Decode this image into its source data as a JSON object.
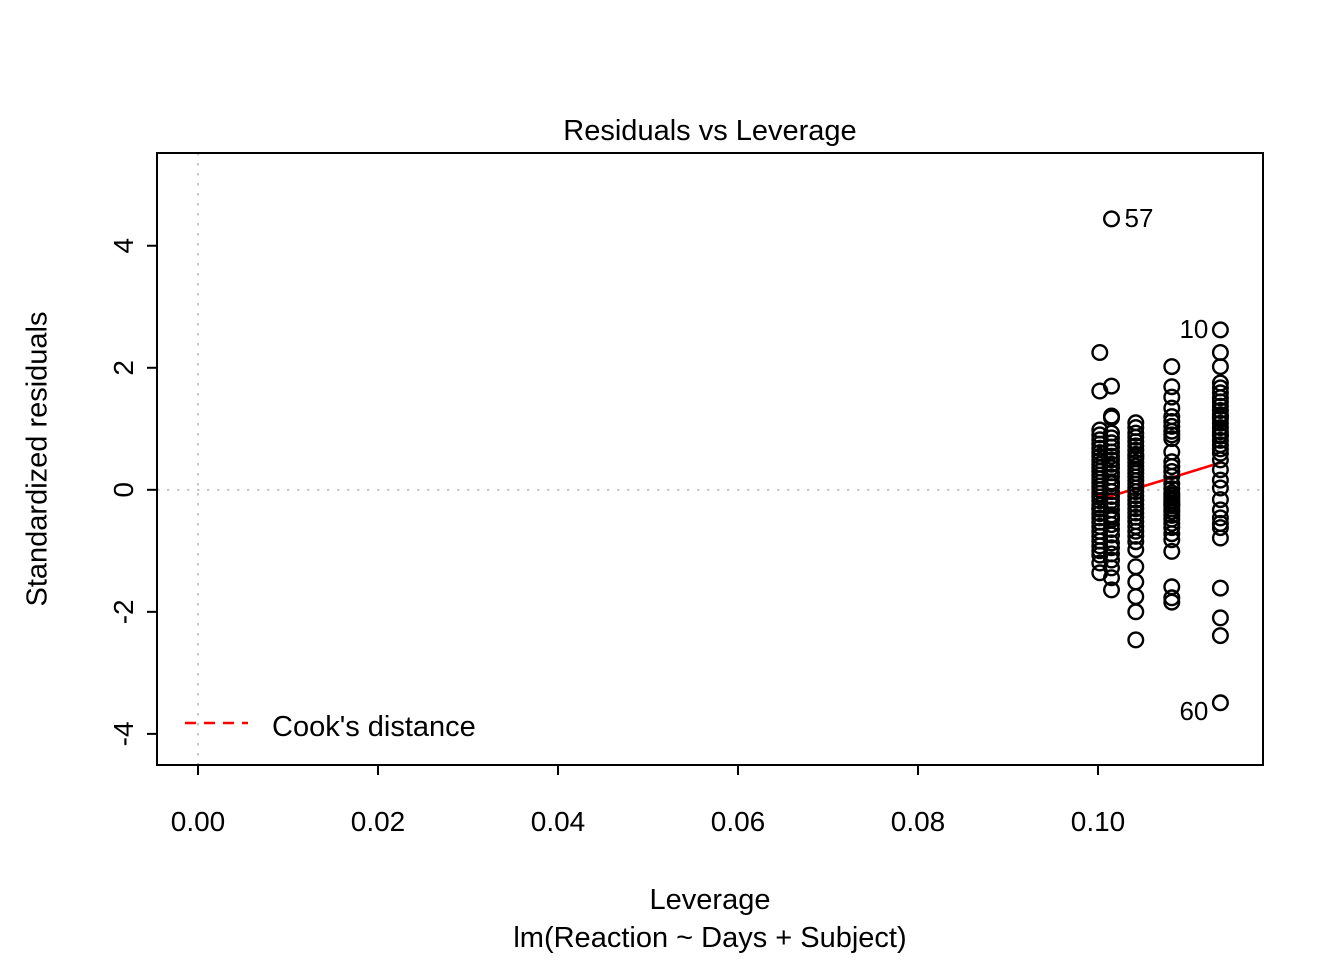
{
  "chart_data": {
    "type": "scatter",
    "title": "Residuals vs Leverage",
    "xlabel": "Leverage",
    "xlabel_sub": "lm(Reaction ~ Days + Subject)",
    "ylabel": "Standardized residuals",
    "x_ticks": {
      "values": [
        0.0,
        0.02,
        0.04,
        0.06,
        0.08,
        0.1
      ],
      "labels": [
        "0.00",
        "0.02",
        "0.04",
        "0.06",
        "0.08",
        "0.10"
      ]
    },
    "y_ticks": {
      "values": [
        -4,
        -2,
        0,
        2,
        4
      ],
      "labels": [
        "-4",
        "-2",
        "0",
        "2",
        "4"
      ]
    },
    "xlim": [
      -0.004556,
      0.118333
    ],
    "ylim": [
      -4.51,
      5.52
    ],
    "grid": "off",
    "reference_lines": {
      "vertical_x": 0.0,
      "horizontal_y": 0.0,
      "style": "dotted",
      "color": "#c7c7c7"
    },
    "marker": {
      "shape": "open-circle",
      "color": "#000000",
      "radius_px": 7.3
    },
    "series": [
      {
        "name": "leverage-0.1002",
        "leverage": 0.1002,
        "residuals": [
          2.25,
          1.62,
          0.98,
          0.9,
          0.82,
          0.75,
          0.68,
          0.61,
          0.55,
          0.48,
          0.42,
          0.36,
          0.3,
          0.24,
          0.18,
          0.12,
          0.06,
          0.0,
          -0.06,
          -0.12,
          -0.18,
          -0.25,
          -0.32,
          -0.39,
          -0.46,
          -0.53,
          -0.6,
          -0.68,
          -0.76,
          -0.84,
          -0.92,
          -1.0,
          -1.07,
          -1.2,
          -1.36,
          -0.3
        ]
      },
      {
        "name": "leverage-0.1015",
        "leverage": 0.1015,
        "residuals": [
          4.44,
          1.7,
          1.21,
          1.18,
          0.93,
          0.85,
          0.77,
          0.7,
          0.62,
          0.55,
          0.49,
          0.42,
          0.36,
          0.28,
          0.21,
          0.13,
          0.05,
          -0.03,
          -0.11,
          -0.18,
          -0.25,
          -0.33,
          -0.41,
          -0.49,
          -0.57,
          -0.65,
          -0.74,
          -0.87,
          -0.95,
          -1.05,
          -1.15,
          -1.28,
          -1.44,
          -1.64,
          0.1,
          -0.45
        ]
      },
      {
        "name": "leverage-0.1042",
        "leverage": 0.1042,
        "residuals": [
          1.1,
          1.02,
          0.93,
          0.86,
          0.79,
          0.72,
          0.65,
          0.58,
          0.51,
          0.45,
          0.39,
          0.33,
          0.27,
          0.21,
          0.15,
          0.09,
          0.03,
          -0.03,
          -0.1,
          -0.17,
          -0.24,
          -0.31,
          -0.38,
          -0.45,
          -0.52,
          -0.6,
          -0.68,
          -0.76,
          -0.85,
          -0.98,
          -1.26,
          -1.51,
          -1.75,
          -2.0,
          -2.46,
          0.55
        ]
      },
      {
        "name": "leverage-0.1082",
        "leverage": 0.1082,
        "residuals": [
          2.02,
          1.69,
          1.52,
          1.34,
          1.2,
          1.12,
          1.04,
          0.96,
          0.9,
          0.84,
          0.62,
          0.46,
          0.38,
          0.3,
          0.22,
          0.1,
          0.02,
          -0.05,
          -0.09,
          -0.13,
          -0.17,
          -0.21,
          -0.26,
          -0.31,
          -0.36,
          -0.42,
          -0.48,
          -0.55,
          -0.62,
          -0.72,
          -0.82,
          -1.01,
          -1.59,
          -1.77,
          -1.84,
          -0.24
        ]
      },
      {
        "name": "leverage-0.1136",
        "leverage": 0.1136,
        "residuals": [
          2.62,
          2.25,
          2.02,
          1.75,
          1.67,
          1.59,
          1.51,
          1.44,
          1.37,
          1.3,
          1.23,
          1.16,
          1.09,
          1.02,
          0.95,
          0.88,
          0.81,
          0.74,
          0.67,
          0.6,
          0.49,
          0.33,
          0.16,
          0.03,
          -0.16,
          -0.33,
          -0.46,
          -0.62,
          -0.79,
          -1.61,
          -2.1,
          -2.39,
          -3.49,
          1.2,
          0.9,
          -0.55
        ]
      }
    ],
    "labeled_points": [
      {
        "label": "57",
        "leverage": 0.1015,
        "residual": 4.44,
        "label_side": "right"
      },
      {
        "label": "10",
        "leverage": 0.1136,
        "residual": 2.62,
        "label_side": "left"
      },
      {
        "label": "60",
        "leverage": 0.1136,
        "residual": -3.49,
        "label_side": "left-below"
      }
    ],
    "smooth_line": {
      "color": "#ff0000",
      "points": [
        [
          0.0995,
          -0.09
        ],
        [
          0.1015,
          -0.1
        ],
        [
          0.1042,
          0.02
        ],
        [
          0.1082,
          0.2
        ],
        [
          0.1137,
          0.45
        ]
      ]
    },
    "legend": {
      "label": "Cook's distance",
      "line_color": "#ff0000",
      "line_style": "dashed"
    }
  }
}
